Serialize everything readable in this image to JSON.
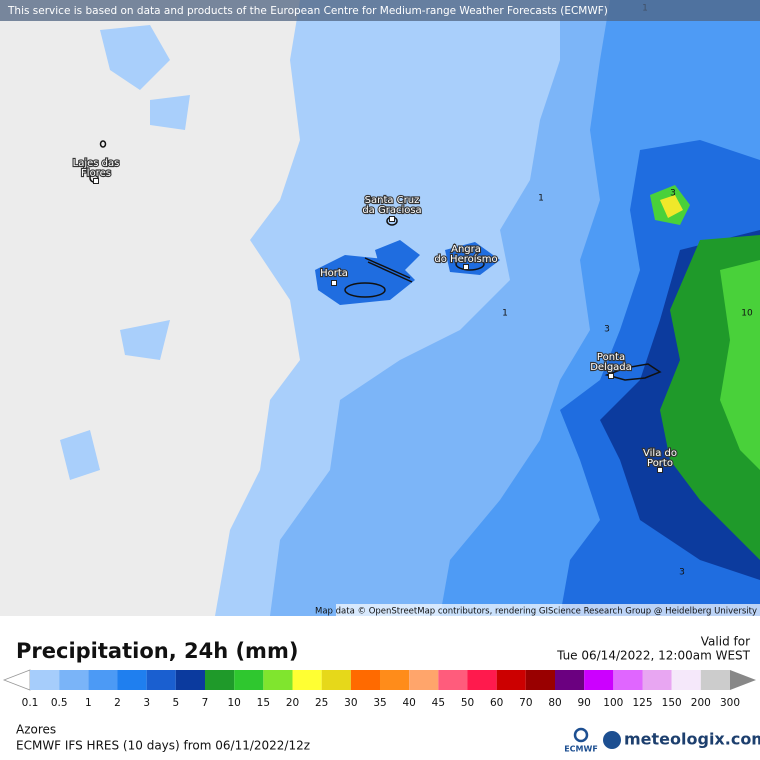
{
  "banner": "This service is based on data and products of the European Centre for Medium-range Weather Forecasts (ECMWF)",
  "places": [
    {
      "lines": [
        "Lajes das",
        "Flores"
      ]
    },
    {
      "lines": [
        "Santa Cruz",
        "da Graciosa"
      ]
    },
    {
      "lines": [
        "Angra",
        "do Heroísmo"
      ]
    },
    {
      "lines": [
        "Horta"
      ]
    },
    {
      "lines": [
        "Ponta",
        "Delgada"
      ]
    },
    {
      "lines": [
        "Vila do",
        "Porto"
      ]
    }
  ],
  "contour_labels": [
    "1",
    "1",
    "1",
    "3",
    "3",
    "10",
    "3"
  ],
  "attribution": "Map data © OpenStreetMap contributors, rendering GIScience Research Group @ Heidelberg University",
  "legend": {
    "title": "Precipitation, 24h (mm)",
    "valid_label": "Valid for",
    "valid_time": "Tue 06/14/2022, 12:00am WEST",
    "labels": [
      "0.1",
      "0.5",
      "1",
      "2",
      "3",
      "5",
      "7",
      "10",
      "15",
      "20",
      "25",
      "30",
      "35",
      "40",
      "45",
      "50",
      "60",
      "70",
      "80",
      "90",
      "100",
      "125",
      "150",
      "200",
      "300"
    ],
    "colors": [
      "#ffffff",
      "#a6cdfb",
      "#7ab4f8",
      "#4c9af5",
      "#1f7fef",
      "#1a5fd0",
      "#0b3a9e",
      "#1f9a2a",
      "#2fc72f",
      "#80e52e",
      "#ffff33",
      "#e6d81a",
      "#ff6a00",
      "#ff8c1a",
      "#ffa56b",
      "#ff5c7c",
      "#ff1a4d",
      "#cc0000",
      "#990000",
      "#6b0080",
      "#cc00ff",
      "#e066ff",
      "#e8a6f2",
      "#f5e8fa",
      "#cccccc",
      "#888888"
    ]
  },
  "footer": {
    "region": "Azores",
    "model": "ECMWF IFS HRES (10 days) from 06/11/2022/12z",
    "logo_left": "ECMWF",
    "logo_right": "meteologix.com"
  }
}
